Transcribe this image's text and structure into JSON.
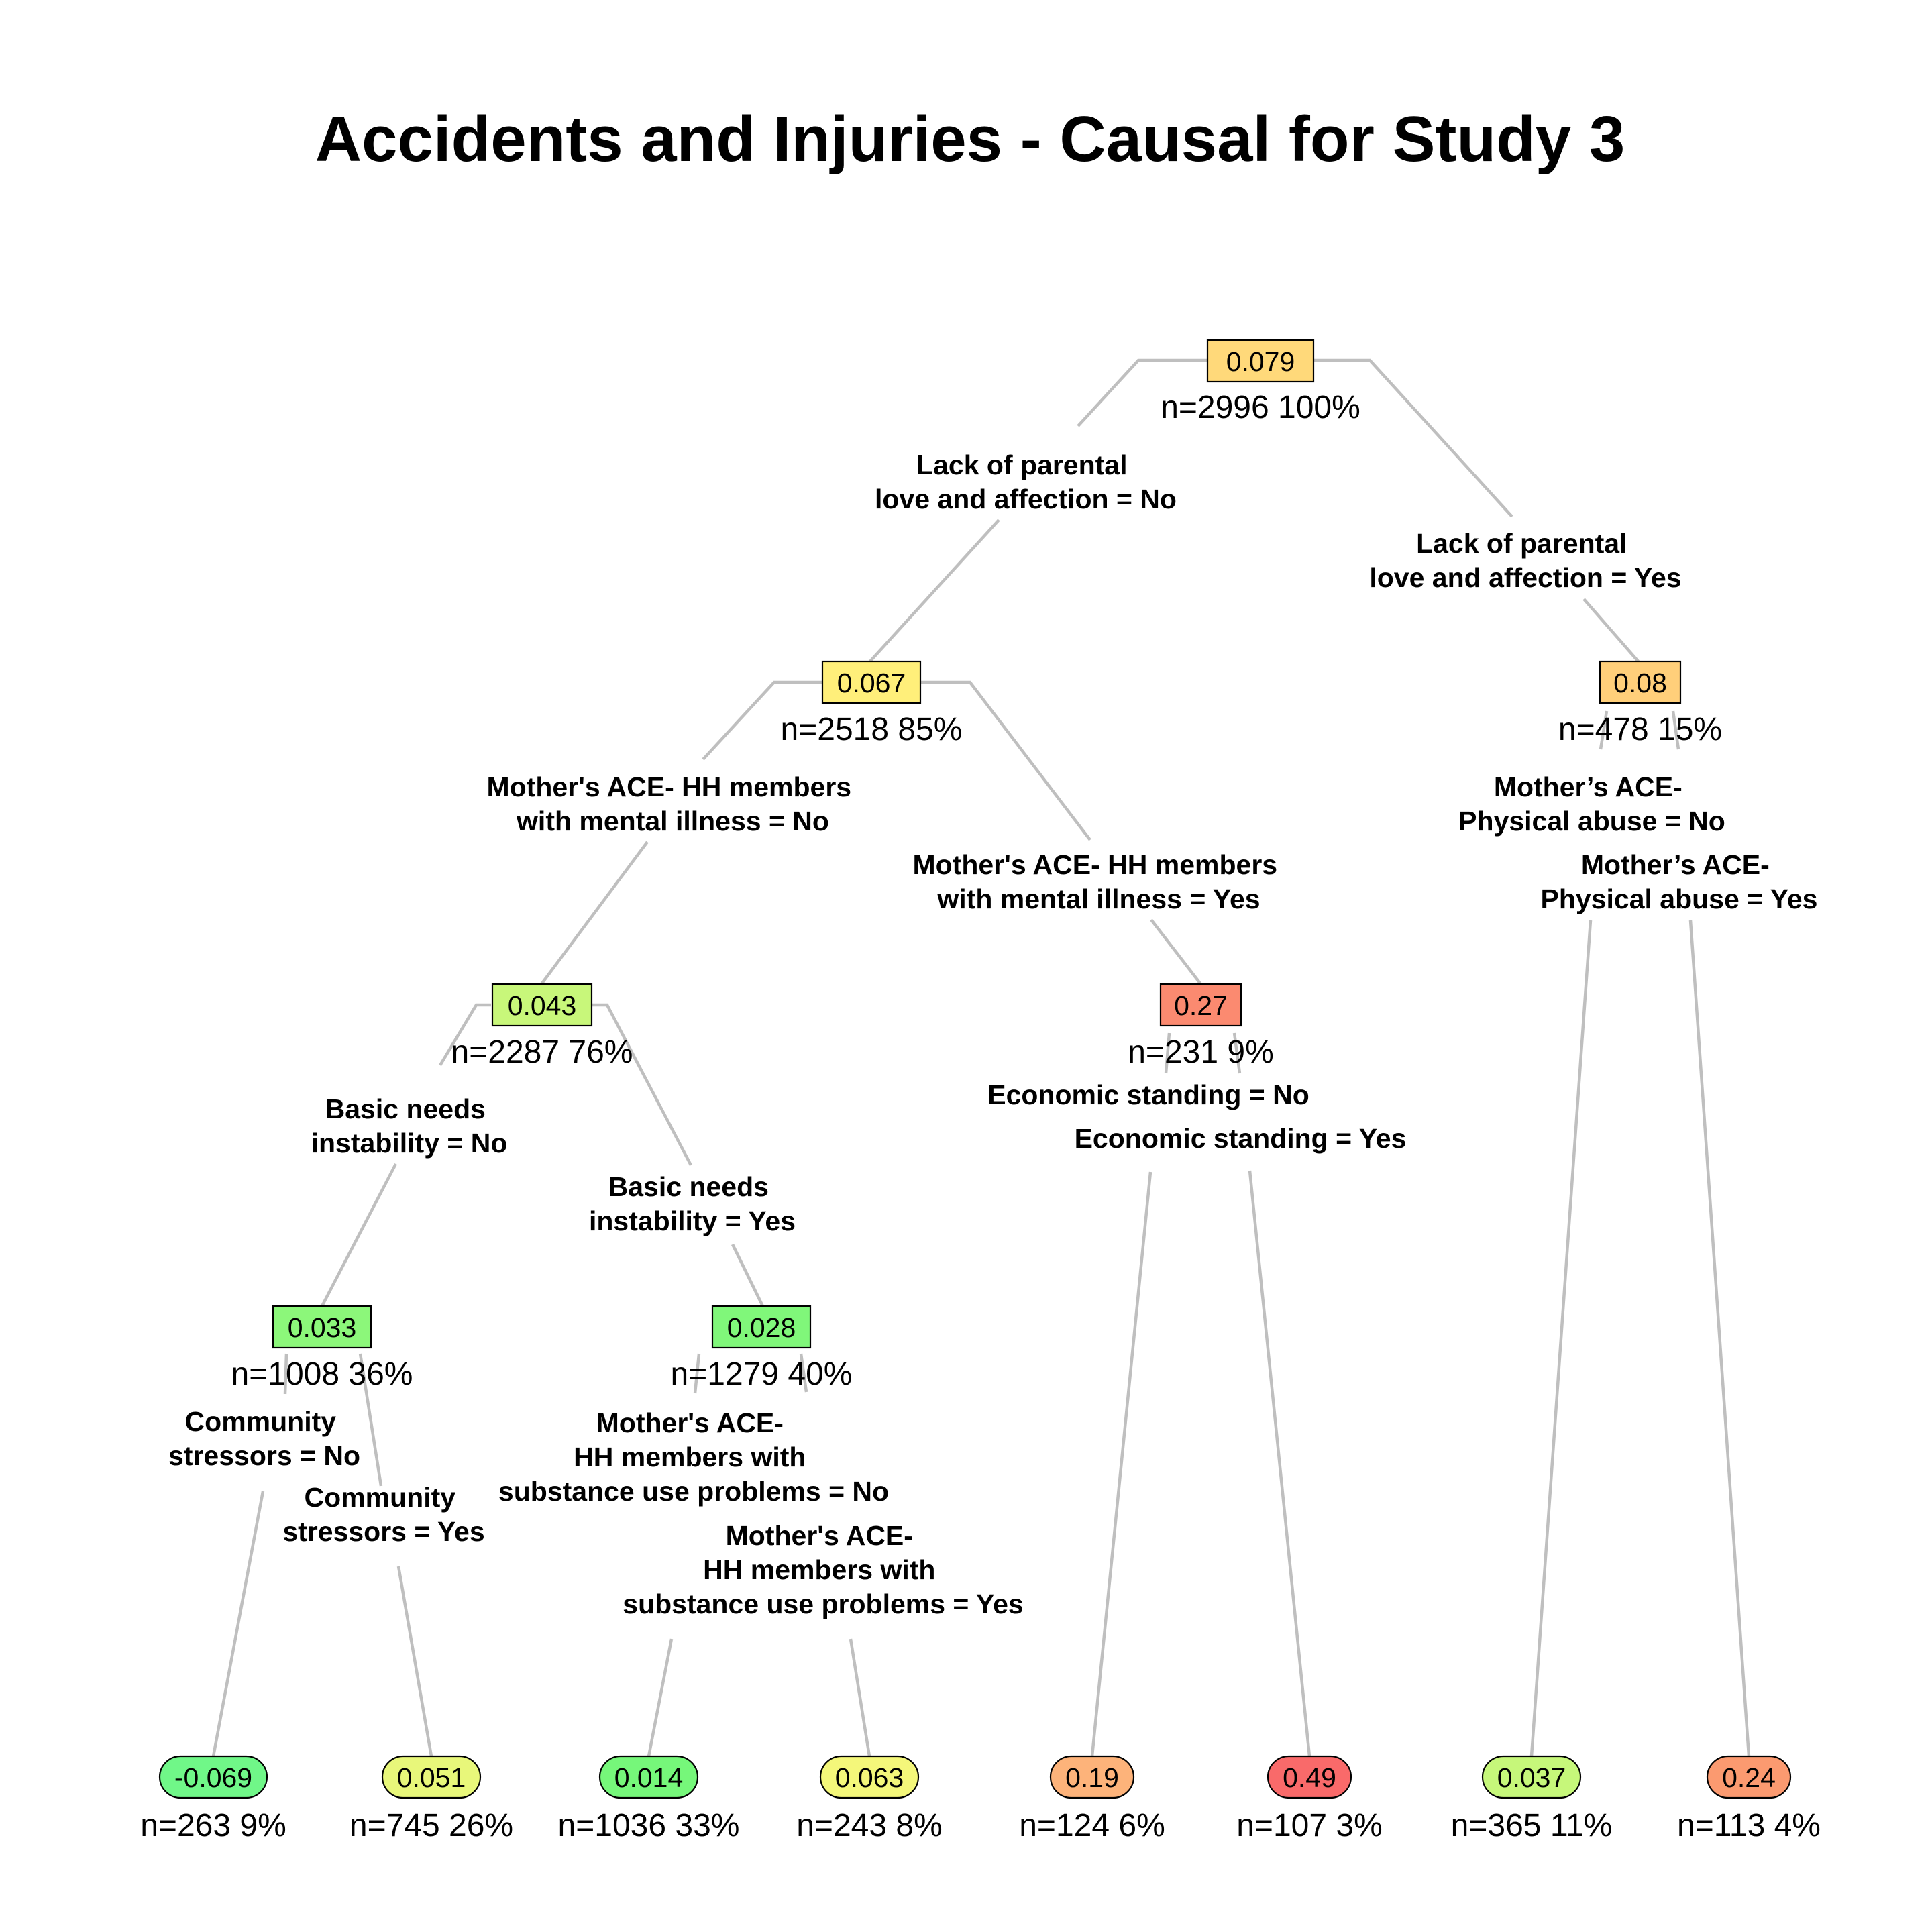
{
  "title": "Accidents and Injuries - Causal for Study 3",
  "colors": {
    "edge": "#bfbfbf",
    "n0": "#ffd97a",
    "n1": "#ffef7a",
    "n2": "#ffcf7a",
    "n3": "#c8f77a",
    "n4": "#fb8a70",
    "n5": "#8cf77a",
    "n6": "#80f77a",
    "l1": "#70f788",
    "l2": "#e8f77a",
    "l3": "#76f77a",
    "l4": "#f4f77a",
    "l5": "#fdb37a",
    "l6": "#f96a6a",
    "l7": "#c6f77a",
    "l8": "#fb9a70"
  },
  "nodes": {
    "n0": {
      "value": "0.079",
      "stats": "n=2996  100%"
    },
    "n1": {
      "value": "0.067",
      "stats": "n=2518  85%"
    },
    "n2": {
      "value": "0.08",
      "stats": "n=478  15%"
    },
    "n3": {
      "value": "0.043",
      "stats": "n=2287  76%"
    },
    "n4": {
      "value": "0.27",
      "stats": "n=231  9%"
    },
    "n5": {
      "value": "0.033",
      "stats": "n=1008  36%"
    },
    "n6": {
      "value": "0.028",
      "stats": "n=1279  40%"
    }
  },
  "leaves": {
    "l1": {
      "value": "-0.069",
      "stats": "n=263  9%"
    },
    "l2": {
      "value": "0.051",
      "stats": "n=745  26%"
    },
    "l3": {
      "value": "0.014",
      "stats": "n=1036  33%"
    },
    "l4": {
      "value": "0.063",
      "stats": "n=243  8%"
    },
    "l5": {
      "value": "0.19",
      "stats": "n=124  6%"
    },
    "l6": {
      "value": "0.49",
      "stats": "n=107  3%"
    },
    "l7": {
      "value": "0.037",
      "stats": "n=365  11%"
    },
    "l8": {
      "value": "0.24",
      "stats": "n=113  4%"
    }
  },
  "splits": {
    "n0_left": [
      "Lack of parental",
      "love and affection = No"
    ],
    "n0_right": [
      "Lack of parental",
      "love and affection = Yes"
    ],
    "n1_left": [
      "Mother's ACE- HH members",
      "with mental illness = No"
    ],
    "n1_right": [
      "Mother's ACE- HH members",
      "with mental illness = Yes"
    ],
    "n2_left": [
      "Mother’s ACE-",
      "Physical abuse = No"
    ],
    "n2_right": [
      "Mother’s ACE-",
      "Physical abuse = Yes"
    ],
    "n3_left": [
      "Basic needs",
      "instability = No"
    ],
    "n3_right": [
      "Basic needs",
      "instability = Yes"
    ],
    "n4_left": [
      "Economic standing = No"
    ],
    "n4_right": [
      "Economic standing = Yes"
    ],
    "n5_left": [
      "Community",
      "stressors = No"
    ],
    "n5_right": [
      "Community",
      "stressors = Yes"
    ],
    "n6_left": [
      "Mother's ACE-",
      "HH members with",
      "substance use problems = No"
    ],
    "n6_right": [
      "Mother's ACE-",
      "HH members with",
      "substance use problems = Yes"
    ]
  }
}
